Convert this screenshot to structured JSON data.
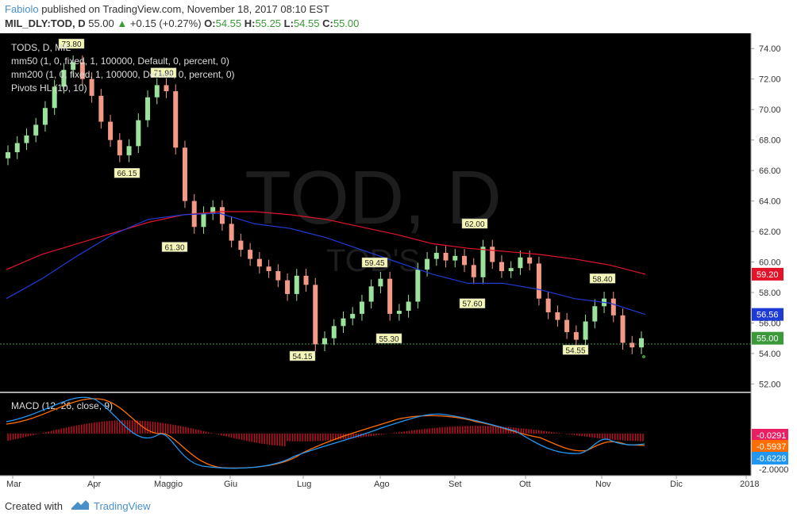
{
  "header": {
    "author": "Fabiolo",
    "published_text": "published on TradingView.com, November 18, 2017 08:10 EST",
    "symbol": "MIL_DLY:TOD, D",
    "last": "55.00",
    "change_arrow": "▲",
    "change": "+0.15 (+0.27%)",
    "o_label": "O:",
    "o_value": "54.55",
    "h_label": "H:",
    "h_value": "55.25",
    "l_label": "L:",
    "l_value": "54.55",
    "c_label": "C:",
    "c_value": "55.00"
  },
  "legend": {
    "line1": "TODS, D, MIL",
    "line2": "mm50 (1, 0, fixed, 1, 100000, Default, 0, percent, 0)",
    "line3": "mm200 (1, 0, fixed, 1, 100000, Default, 0, percent, 0)",
    "line4": "Pivots HL (10, 10)"
  },
  "watermark": {
    "main": "TOD, D",
    "sub": "TOD'S"
  },
  "macd_label": "MACD (12, 26, close, 9)",
  "footer": {
    "created": "Created with",
    "brand": "TradingView"
  },
  "chart_data": {
    "type": "candlestick",
    "y_ticks": [
      "52.00",
      "54.00",
      "56.00",
      "58.00",
      "60.00",
      "62.00",
      "64.00",
      "66.00",
      "68.00",
      "70.00",
      "72.00",
      "74.00"
    ],
    "ylim": [
      51.5,
      75.0
    ],
    "x_ticks": [
      "Mar",
      "Apr",
      "Maggio",
      "Giu",
      "Lug",
      "Ago",
      "Set",
      "Ott",
      "Nov",
      "Dic",
      "2018"
    ],
    "price_labels": [
      {
        "text": "59.20",
        "value": 59.2,
        "color": "#e3142a"
      },
      {
        "text": "56.56",
        "value": 56.56,
        "color": "#1f3bd6"
      },
      {
        "text": "55.00",
        "value": 55.0,
        "color": "#3a9a3a"
      }
    ],
    "pivots": [
      {
        "text": "73.80",
        "value": 73.8,
        "type": "high",
        "x": "Mar 23"
      },
      {
        "text": "71.90",
        "value": 71.9,
        "type": "high",
        "x": "Apr 28"
      },
      {
        "text": "66.15",
        "value": 66.15,
        "type": "low",
        "x": "Apr 18"
      },
      {
        "text": "61.30",
        "value": 61.3,
        "type": "low",
        "x": "May 9"
      },
      {
        "text": "59.45",
        "value": 59.45,
        "type": "high",
        "x": "Aug 1"
      },
      {
        "text": "54.15",
        "value": 54.15,
        "type": "low",
        "x": "Jul 3"
      },
      {
        "text": "55.30",
        "value": 55.3,
        "type": "low",
        "x": "Aug 4"
      },
      {
        "text": "62.00",
        "value": 62.0,
        "type": "high",
        "x": "Sep 8"
      },
      {
        "text": "57.60",
        "value": 57.6,
        "type": "low",
        "x": "Sep 7"
      },
      {
        "text": "54.55",
        "value": 54.55,
        "type": "low",
        "x": "Oct 23"
      },
      {
        "text": "58.40",
        "value": 58.4,
        "type": "high",
        "x": "Oct 31"
      }
    ],
    "close_series": [
      67.2,
      67.8,
      68.3,
      69.0,
      70.1,
      71.5,
      72.6,
      73.1,
      72.0,
      70.9,
      69.2,
      68.0,
      67.0,
      67.6,
      69.3,
      70.8,
      71.6,
      71.2,
      67.5,
      64.0,
      62.3,
      63.2,
      63.6,
      62.5,
      61.4,
      60.8,
      60.2,
      59.7,
      59.4,
      58.8,
      57.9,
      59.1,
      58.5,
      54.6,
      55.0,
      55.8,
      56.3,
      56.6,
      57.4,
      58.4,
      58.9,
      56.6,
      56.8,
      57.4,
      59.5,
      60.2,
      60.6,
      60.1,
      60.4,
      59.8,
      59.0,
      61.0,
      60.0,
      59.4,
      59.6,
      60.3,
      59.9,
      57.6,
      56.7,
      56.2,
      55.4,
      54.9,
      56.1,
      57.1,
      57.6,
      56.5,
      54.7,
      54.4,
      55.0
    ],
    "ma50": [
      57.6,
      58.9,
      60.4,
      61.8,
      62.8,
      63.1,
      63.2,
      62.5,
      62.2,
      61.6,
      60.8,
      60.0,
      59.2,
      58.6,
      58.6,
      58.2,
      57.6,
      57.3,
      56.56
    ],
    "ma200": [
      59.5,
      60.5,
      61.2,
      61.9,
      62.6,
      63.1,
      63.3,
      63.3,
      63.1,
      62.8,
      62.3,
      61.8,
      61.2,
      60.9,
      60.7,
      60.5,
      60.2,
      59.8,
      59.2
    ],
    "macd": {
      "label": "MACD (12, 26, close, 9)",
      "values": [
        {
          "text": "-0.0291",
          "color": "#e91e63"
        },
        {
          "text": "-0.5937",
          "color": "#ff6d00"
        },
        {
          "text": "-0.6228",
          "color": "#2196f3"
        }
      ],
      "tick": "-2.0000"
    }
  }
}
